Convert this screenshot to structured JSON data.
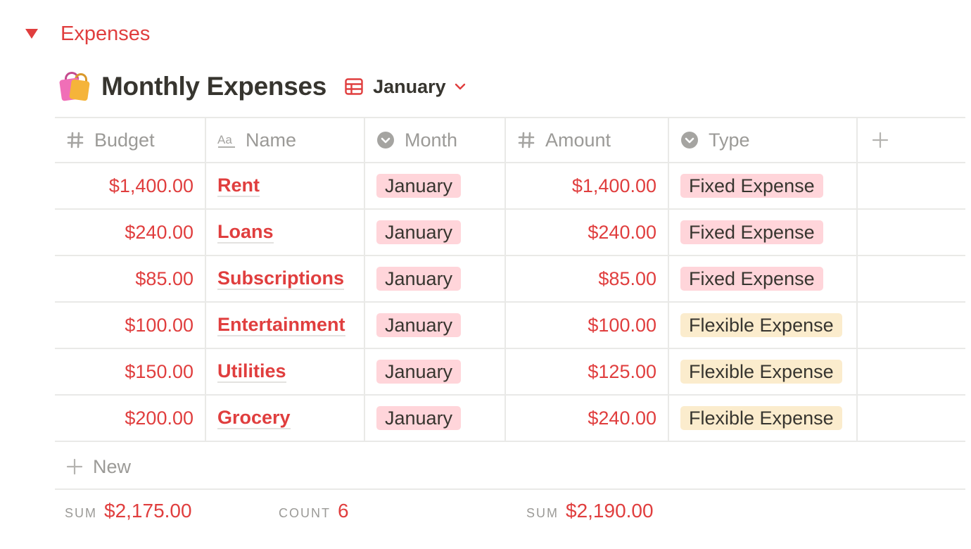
{
  "toggle": {
    "label": "Expenses"
  },
  "database": {
    "emoji": "shopping-bags-icon",
    "title": "Monthly Expenses",
    "view": {
      "label": "January",
      "icon": "table-icon"
    }
  },
  "columns": [
    {
      "label": "Budget",
      "icon": "number-icon"
    },
    {
      "label": "Name",
      "icon": "text-icon"
    },
    {
      "label": "Month",
      "icon": "select-icon"
    },
    {
      "label": "Amount",
      "icon": "number-icon"
    },
    {
      "label": "Type",
      "icon": "select-icon"
    }
  ],
  "rows": [
    {
      "budget": "$1,400.00",
      "name": "Rent",
      "month": "January",
      "amount": "$1,400.00",
      "type": "Fixed Expense"
    },
    {
      "budget": "$240.00",
      "name": "Loans",
      "month": "January",
      "amount": "$240.00",
      "type": "Fixed Expense"
    },
    {
      "budget": "$85.00",
      "name": "Subscriptions",
      "month": "January",
      "amount": "$85.00",
      "type": "Fixed Expense"
    },
    {
      "budget": "$100.00",
      "name": "Entertainment",
      "month": "January",
      "amount": "$100.00",
      "type": "Flexible Expense"
    },
    {
      "budget": "$150.00",
      "name": "Utilities",
      "month": "January",
      "amount": "$125.00",
      "type": "Flexible Expense"
    },
    {
      "budget": "$200.00",
      "name": "Grocery",
      "month": "January",
      "amount": "$240.00",
      "type": "Flexible Expense"
    }
  ],
  "new_row": {
    "label": "New"
  },
  "footer": {
    "budget_sum": {
      "label": "SUM",
      "value": "$2,175.00"
    },
    "name_count": {
      "label": "COUNT",
      "value": "6"
    },
    "amount_sum": {
      "label": "SUM",
      "value": "$2,190.00"
    }
  },
  "colors": {
    "accent": "#e03e3e",
    "text": "#37352f",
    "muted": "#9b9a97",
    "tag_pink": "#ffd5da",
    "tag_beige": "#fbeccd",
    "border": "#e9e9e7"
  }
}
